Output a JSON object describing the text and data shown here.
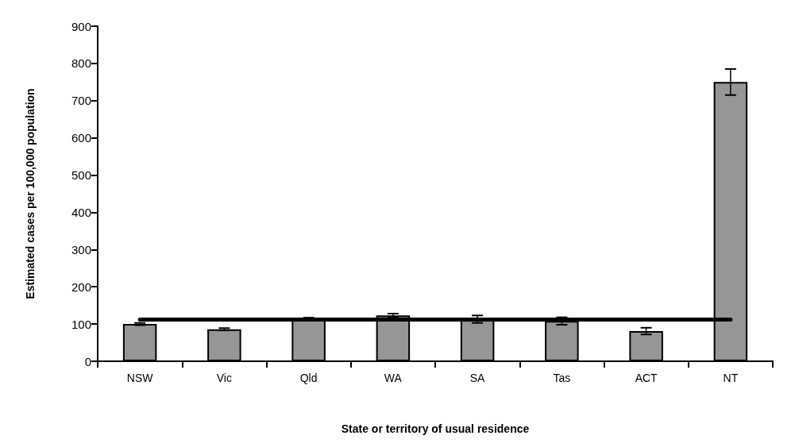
{
  "chart_data": {
    "type": "bar",
    "xlabel": "State or territory of usual residence",
    "ylabel": "Estimated cases per 100,000 population",
    "categories": [
      "NSW",
      "Vic",
      "Qld",
      "WA",
      "SA",
      "Tas",
      "ACT",
      "NT"
    ],
    "values": [
      100,
      86,
      113,
      123,
      113,
      108,
      81,
      750
    ],
    "errors": [
      3,
      3,
      4,
      5,
      10,
      10,
      9,
      35
    ],
    "color": "#969696",
    "ylim": [
      0,
      900
    ],
    "yticks": [
      0,
      100,
      200,
      300,
      400,
      500,
      600,
      700,
      800,
      900
    ],
    "ref_lines": [
      {
        "axis": "y",
        "value": 113,
        "color": "#000000"
      }
    ],
    "grid": false
  }
}
